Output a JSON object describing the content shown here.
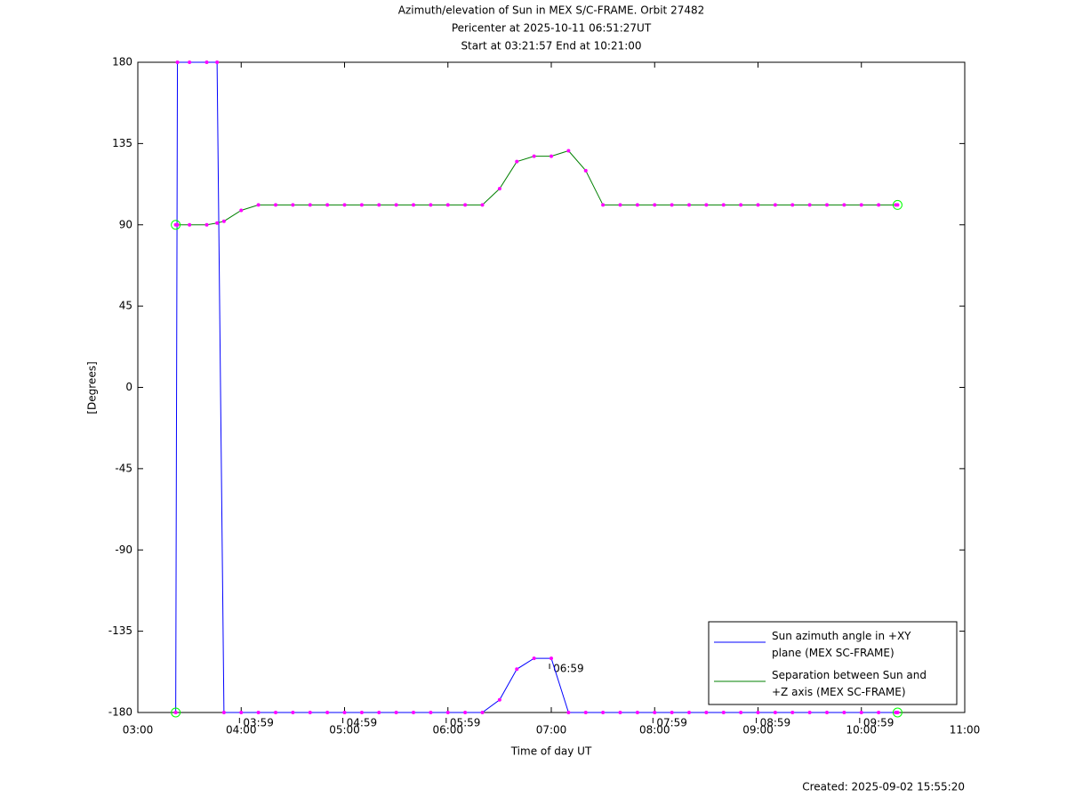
{
  "chart_data": {
    "type": "line",
    "title": "Azimuth/elevation of Sun in MEX S/C-FRAME.  Orbit 27482",
    "subtitle": "Pericenter at 2025-10-11 06:51:27UT",
    "subtitle2": "Start at 03:21:57 End at 10:21:00",
    "xlabel": "Time of day UT",
    "ylabel": "[Degrees]",
    "footer": "Created: 2025-09-02 15:55:20",
    "xlim": [
      "03:00",
      "11:00"
    ],
    "xticks": [
      "03:00",
      "04:00",
      "05:00",
      "06:00",
      "07:00",
      "08:00",
      "09:00",
      "10:00",
      "11:00"
    ],
    "ylim": [
      -180,
      180
    ],
    "yticks": [
      180,
      135,
      90,
      45,
      0,
      -45,
      -90,
      -135,
      -180
    ],
    "orbit_time_labels": [
      "03:59",
      "04:59",
      "05:59",
      "06:59",
      "07:59",
      "08:59",
      "09:59"
    ],
    "x": [
      "03:22",
      "03:23",
      "03:30",
      "03:40",
      "03:46",
      "03:50",
      "04:00",
      "04:10",
      "04:20",
      "04:30",
      "04:40",
      "04:50",
      "05:00",
      "05:10",
      "05:20",
      "05:30",
      "05:40",
      "05:50",
      "06:00",
      "06:10",
      "06:20",
      "06:30",
      "06:40",
      "06:50",
      "07:00",
      "07:10",
      "07:20",
      "07:30",
      "07:40",
      "07:50",
      "08:00",
      "08:10",
      "08:20",
      "08:30",
      "08:40",
      "08:50",
      "09:00",
      "09:10",
      "09:20",
      "09:30",
      "09:40",
      "09:50",
      "10:00",
      "10:10",
      "10:20",
      "10:21"
    ],
    "series": [
      {
        "name": "Sun azimuth angle in +XY plane (MEX SC-FRAME)",
        "color": "#0000ff",
        "values": [
          -180,
          180,
          180,
          180,
          180,
          -180,
          -180,
          -180,
          -180,
          -180,
          -180,
          -180,
          -180,
          -180,
          -180,
          -180,
          -180,
          -180,
          -180,
          -180,
          -180,
          -173,
          -156,
          -150,
          -150,
          -180,
          -180,
          -180,
          -180,
          -180,
          -180,
          -180,
          -180,
          -180,
          -180,
          -180,
          -180,
          -180,
          -180,
          -180,
          -180,
          -180,
          -180,
          -180,
          -180,
          -180
        ]
      },
      {
        "name": "Separation between Sun and +Z axis (MEX SC-FRAME)",
        "color": "#008000",
        "values": [
          90,
          90,
          90,
          90,
          91,
          92,
          98,
          101,
          101,
          101,
          101,
          101,
          101,
          101,
          101,
          101,
          101,
          101,
          101,
          101,
          101,
          110,
          125,
          128,
          128,
          131,
          120,
          101,
          101,
          101,
          101,
          101,
          101,
          101,
          101,
          101,
          101,
          101,
          101,
          101,
          101,
          101,
          101,
          101,
          101,
          101
        ]
      }
    ],
    "marker_color": "#ff00ff"
  }
}
